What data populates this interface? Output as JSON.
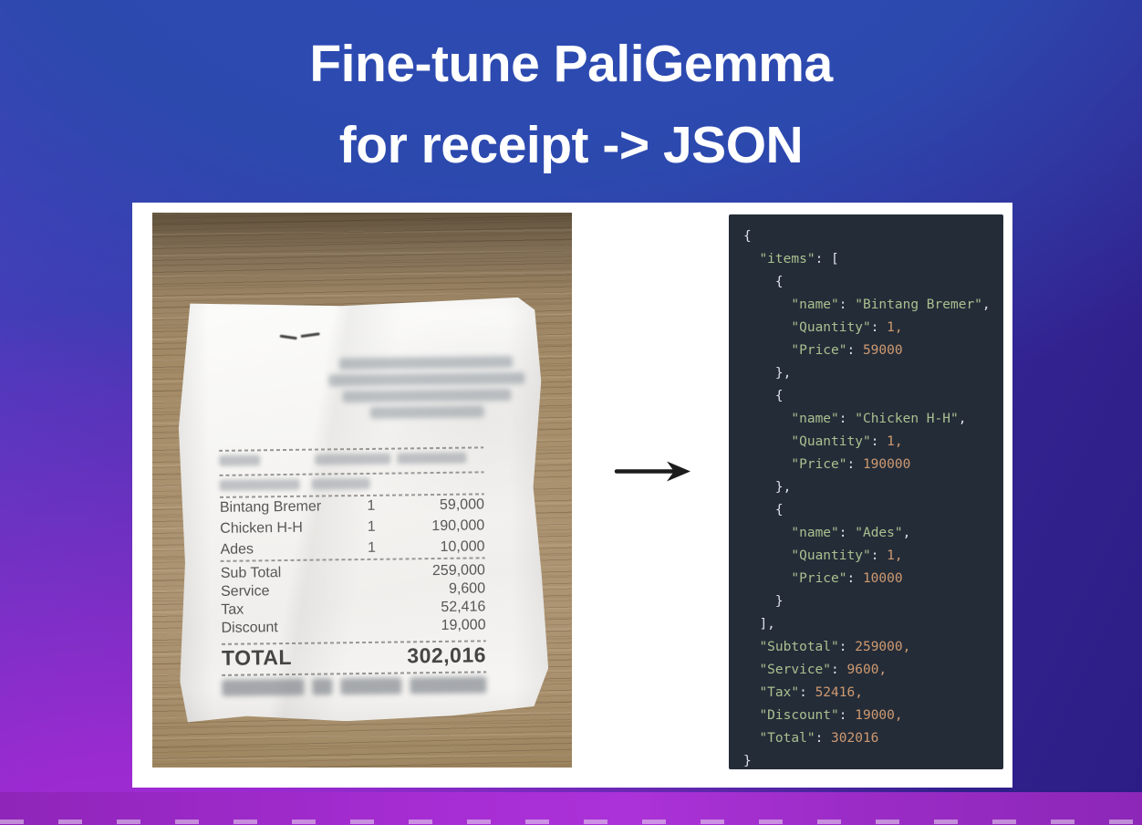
{
  "title": {
    "line1": "Fine-tune PaliGemma",
    "line2": "for receipt -> JSON"
  },
  "receipt": {
    "items": [
      {
        "name": "Bintang Bremer",
        "qty": "1",
        "price": "59,000"
      },
      {
        "name": "Chicken H-H",
        "qty": "1",
        "price": "190,000"
      },
      {
        "name": "Ades",
        "qty": "1",
        "price": "10,000"
      }
    ],
    "summary": [
      {
        "label": "Sub Total",
        "value": "259,000"
      },
      {
        "label": "Service",
        "value": "9,600"
      },
      {
        "label": "Tax",
        "value": "52,416"
      },
      {
        "label": "Discount",
        "value": "19,000"
      }
    ],
    "total_label": "TOTAL",
    "total_value": "302,016"
  },
  "code": {
    "colors": {
      "k": "#a9c08f",
      "s": "#a9c08f",
      "n": "#cf9a70",
      "p": "#dce2ea"
    },
    "lines": [
      {
        "ind": 0,
        "tk": [
          [
            "p",
            "{"
          ]
        ]
      },
      {
        "ind": 1,
        "tk": [
          [
            "k",
            "\"items\""
          ],
          [
            "p",
            ": ["
          ]
        ]
      },
      {
        "ind": 2,
        "tk": [
          [
            "p",
            "{"
          ]
        ]
      },
      {
        "ind": 3,
        "tk": [
          [
            "k",
            "\"name\""
          ],
          [
            "p",
            ": "
          ],
          [
            "s",
            "\"Bintang Bremer\""
          ],
          [
            "p",
            ","
          ]
        ]
      },
      {
        "ind": 3,
        "tk": [
          [
            "k",
            "\"Quantity\""
          ],
          [
            "p",
            ": "
          ],
          [
            "n",
            "1,"
          ]
        ]
      },
      {
        "ind": 3,
        "tk": [
          [
            "k",
            "\"Price\""
          ],
          [
            "p",
            ": "
          ],
          [
            "n",
            "59000"
          ]
        ]
      },
      {
        "ind": 2,
        "tk": [
          [
            "p",
            "},"
          ]
        ]
      },
      {
        "ind": 2,
        "tk": [
          [
            "p",
            "{"
          ]
        ]
      },
      {
        "ind": 3,
        "tk": [
          [
            "k",
            "\"name\""
          ],
          [
            "p",
            ": "
          ],
          [
            "s",
            "\"Chicken H-H\""
          ],
          [
            "p",
            ","
          ]
        ]
      },
      {
        "ind": 3,
        "tk": [
          [
            "k",
            "\"Quantity\""
          ],
          [
            "p",
            ": "
          ],
          [
            "n",
            "1,"
          ]
        ]
      },
      {
        "ind": 3,
        "tk": [
          [
            "k",
            "\"Price\""
          ],
          [
            "p",
            ": "
          ],
          [
            "n",
            "190000"
          ]
        ]
      },
      {
        "ind": 2,
        "tk": [
          [
            "p",
            "},"
          ]
        ]
      },
      {
        "ind": 2,
        "tk": [
          [
            "p",
            "{"
          ]
        ]
      },
      {
        "ind": 3,
        "tk": [
          [
            "k",
            "\"name\""
          ],
          [
            "p",
            ": "
          ],
          [
            "s",
            "\"Ades\""
          ],
          [
            "p",
            ","
          ]
        ]
      },
      {
        "ind": 3,
        "tk": [
          [
            "k",
            "\"Quantity\""
          ],
          [
            "p",
            ": "
          ],
          [
            "n",
            "1,"
          ]
        ]
      },
      {
        "ind": 3,
        "tk": [
          [
            "k",
            "\"Price\""
          ],
          [
            "p",
            ": "
          ],
          [
            "n",
            "10000"
          ]
        ]
      },
      {
        "ind": 2,
        "tk": [
          [
            "p",
            "}"
          ]
        ]
      },
      {
        "ind": 1,
        "tk": [
          [
            "p",
            "],"
          ]
        ]
      },
      {
        "ind": 1,
        "tk": [
          [
            "k",
            "\"Subtotal\""
          ],
          [
            "p",
            ": "
          ],
          [
            "n",
            "259000,"
          ]
        ]
      },
      {
        "ind": 1,
        "tk": [
          [
            "k",
            "\"Service\""
          ],
          [
            "p",
            ": "
          ],
          [
            "n",
            "9600,"
          ]
        ]
      },
      {
        "ind": 1,
        "tk": [
          [
            "k",
            "\"Tax\""
          ],
          [
            "p",
            ": "
          ],
          [
            "n",
            "52416,"
          ]
        ]
      },
      {
        "ind": 1,
        "tk": [
          [
            "k",
            "\"Discount\""
          ],
          [
            "p",
            ": "
          ],
          [
            "n",
            "19000,"
          ]
        ]
      },
      {
        "ind": 1,
        "tk": [
          [
            "k",
            "\"Total\""
          ],
          [
            "p",
            ": "
          ],
          [
            "n",
            "302016"
          ]
        ]
      },
      {
        "ind": 0,
        "tk": [
          [
            "p",
            "}"
          ]
        ]
      }
    ]
  }
}
